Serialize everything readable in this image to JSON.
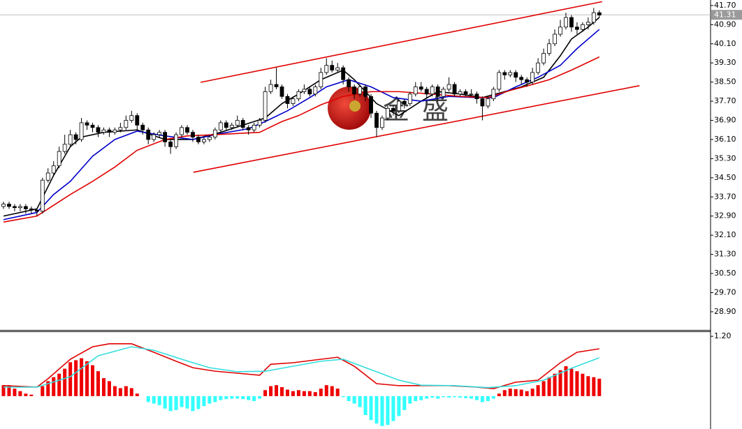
{
  "chart_data": [
    {
      "type": "candlestick",
      "ylim": [
        28.14,
        41.93
      ],
      "yticks": [
        {
          "value": 41.7,
          "label": "41.70"
        },
        {
          "value": 40.9,
          "label": "40.90"
        },
        {
          "value": 40.1,
          "label": "40.10"
        },
        {
          "value": 39.3,
          "label": "39.30"
        },
        {
          "value": 38.5,
          "label": "38.50"
        },
        {
          "value": 37.7,
          "label": "37.70"
        },
        {
          "value": 36.9,
          "label": "36.90"
        },
        {
          "value": 36.1,
          "label": "36.10"
        },
        {
          "value": 35.3,
          "label": "35.30"
        },
        {
          "value": 34.5,
          "label": "34.50"
        },
        {
          "value": 33.7,
          "label": "33.70"
        },
        {
          "value": 32.9,
          "label": "32.90"
        },
        {
          "value": 32.1,
          "label": "32.10"
        },
        {
          "value": 31.3,
          "label": "31.30"
        },
        {
          "value": 30.5,
          "label": "30.50"
        },
        {
          "value": 29.7,
          "label": "29.70"
        },
        {
          "value": 28.9,
          "label": "28.90"
        }
      ],
      "last_price": {
        "value": 41.31,
        "label": "41.31"
      },
      "watermark": "金盛",
      "up_color": "#ffffff",
      "down_color": "#000000",
      "open": [
        33.3,
        33.4,
        33.3,
        33.25,
        33.3,
        33.2,
        33.15,
        33.1,
        34.4,
        34.7,
        35.0,
        35.6,
        35.9,
        36.3,
        36.1,
        36.8,
        36.7,
        36.6,
        36.4,
        36.5,
        36.4,
        36.5,
        36.6,
        36.9,
        37.1,
        36.7,
        36.5,
        36.1,
        36.3,
        36.4,
        36.0,
        35.8,
        36.3,
        36.6,
        36.4,
        36.2,
        36.0,
        36.1,
        36.2,
        36.5,
        36.8,
        36.6,
        36.7,
        36.9,
        36.6,
        36.5,
        36.7,
        36.9,
        38.1,
        38.4,
        38.3,
        37.9,
        37.6,
        37.8,
        38.1,
        38.2,
        38.0,
        38.3,
        38.9,
        39.2,
        39.0,
        39.1,
        38.6,
        38.3,
        38.0,
        38.3,
        37.9,
        37.2,
        36.6,
        37.0,
        37.4,
        37.3,
        37.7,
        37.6,
        38.0,
        38.3,
        38.2,
        38.0,
        38.3,
        37.9,
        38.2,
        38.4,
        38.0,
        38.1,
        38.0,
        38.0,
        37.8,
        37.5,
        37.8,
        38.2,
        38.9,
        38.8,
        38.9,
        38.7,
        38.6,
        38.5,
        38.9,
        39.3,
        39.7,
        40.1,
        40.5,
        40.8,
        41.2,
        40.8,
        40.7,
        40.9,
        41.0,
        41.4
      ],
      "high": [
        33.5,
        33.5,
        33.4,
        33.4,
        33.4,
        33.3,
        33.2,
        34.5,
        34.9,
        35.2,
        35.8,
        36.3,
        36.5,
        36.4,
        37.0,
        36.9,
        36.8,
        36.7,
        36.6,
        36.6,
        36.6,
        36.8,
        37.1,
        37.3,
        37.2,
        36.8,
        36.6,
        36.4,
        36.5,
        36.5,
        36.1,
        36.4,
        36.7,
        36.7,
        36.5,
        36.3,
        36.2,
        36.3,
        36.6,
        36.9,
        36.9,
        36.8,
        37.1,
        37.0,
        36.7,
        36.8,
        37.0,
        38.3,
        38.6,
        39.1,
        38.4,
        38.0,
        37.9,
        38.2,
        38.4,
        38.3,
        38.4,
        39.1,
        39.5,
        39.4,
        39.3,
        39.2,
        38.7,
        38.4,
        38.4,
        38.4,
        38.0,
        37.3,
        37.1,
        37.5,
        37.5,
        37.8,
        37.8,
        38.1,
        38.5,
        38.5,
        38.3,
        38.4,
        38.4,
        38.3,
        38.7,
        38.5,
        38.2,
        38.2,
        38.2,
        38.1,
        37.9,
        37.9,
        38.3,
        39.0,
        39.0,
        39.0,
        39.0,
        38.8,
        38.7,
        39.1,
        39.5,
        39.9,
        40.3,
        40.7,
        41.1,
        41.4,
        41.3,
        41.0,
        41.0,
        41.2,
        41.6,
        41.5
      ],
      "low": [
        33.2,
        33.2,
        33.1,
        33.1,
        33.0,
        33.0,
        32.9,
        33.0,
        34.3,
        34.6,
        34.9,
        35.5,
        35.8,
        35.9,
        36.0,
        36.5,
        36.4,
        36.2,
        36.3,
        36.2,
        36.3,
        36.4,
        36.5,
        36.8,
        36.5,
        36.3,
        35.9,
        36.0,
        36.2,
        35.8,
        35.5,
        35.7,
        36.2,
        36.3,
        36.0,
        35.9,
        35.9,
        36.0,
        36.1,
        36.4,
        36.5,
        36.5,
        36.6,
        36.5,
        36.3,
        36.4,
        36.6,
        36.8,
        38.0,
        38.2,
        37.8,
        37.4,
        37.5,
        37.7,
        38.0,
        37.9,
        37.9,
        38.2,
        38.8,
        38.9,
        38.9,
        38.4,
        38.1,
        37.8,
        37.9,
        37.7,
        37.0,
        36.2,
        36.5,
        36.9,
        37.1,
        37.2,
        37.4,
        37.5,
        37.9,
        38.1,
        37.8,
        37.9,
        37.7,
        37.8,
        38.1,
        37.9,
        37.9,
        37.9,
        37.9,
        37.6,
        36.9,
        37.4,
        37.7,
        38.1,
        38.6,
        38.7,
        38.5,
        38.4,
        38.3,
        38.4,
        38.8,
        39.2,
        39.6,
        40.0,
        40.4,
        40.7,
        40.6,
        40.5,
        40.6,
        40.7,
        40.9,
        41.2
      ],
      "close": [
        33.4,
        33.3,
        33.25,
        33.3,
        33.2,
        33.15,
        33.1,
        34.4,
        34.7,
        35.0,
        35.6,
        35.9,
        36.3,
        36.1,
        36.8,
        36.7,
        36.6,
        36.4,
        36.5,
        36.4,
        36.5,
        36.6,
        36.9,
        37.1,
        36.7,
        36.5,
        36.1,
        36.3,
        36.4,
        36.0,
        35.8,
        36.3,
        36.6,
        36.4,
        36.2,
        36.0,
        36.1,
        36.2,
        36.5,
        36.8,
        36.6,
        36.7,
        36.9,
        36.6,
        36.5,
        36.7,
        36.9,
        38.1,
        38.4,
        38.3,
        37.9,
        37.6,
        37.8,
        38.1,
        38.2,
        38.0,
        38.3,
        38.9,
        39.2,
        39.0,
        39.1,
        38.6,
        38.3,
        38.0,
        38.3,
        37.9,
        37.2,
        36.6,
        37.0,
        37.4,
        37.3,
        37.7,
        37.6,
        38.0,
        38.3,
        38.2,
        38.0,
        38.3,
        37.9,
        38.2,
        38.4,
        38.0,
        38.1,
        38.0,
        38.0,
        37.8,
        37.5,
        37.8,
        38.2,
        38.9,
        38.8,
        38.9,
        38.7,
        38.6,
        38.5,
        38.9,
        39.3,
        39.7,
        40.1,
        40.5,
        40.8,
        41.2,
        40.8,
        40.7,
        40.9,
        41.0,
        41.4,
        41.3
      ],
      "series": [
        {
          "color": "#000000",
          "x": [
            0,
            6,
            9,
            12,
            14,
            18,
            24,
            29,
            34,
            39,
            43,
            47,
            50,
            53,
            57,
            61,
            63,
            67,
            71,
            75,
            78,
            82,
            86,
            90,
            93,
            97,
            100,
            102,
            105,
            107
          ],
          "values": [
            32.9,
            33.2,
            34.6,
            35.8,
            36.2,
            36.4,
            36.5,
            36.1,
            36.1,
            36.4,
            36.7,
            37.0,
            37.6,
            38.0,
            38.6,
            39.0,
            38.6,
            37.6,
            37.1,
            37.7,
            38.1,
            38.0,
            37.85,
            38.1,
            38.3,
            38.7,
            39.6,
            40.3,
            40.8,
            41.2
          ]
        },
        {
          "color": "#0000cc",
          "x": [
            0,
            6,
            9,
            12,
            16,
            20,
            24,
            29,
            34,
            39,
            44,
            47,
            51,
            55,
            58,
            62,
            66,
            70,
            75,
            80,
            85,
            88,
            92,
            96,
            100,
            103,
            107
          ],
          "values": [
            32.75,
            33.05,
            33.8,
            34.35,
            35.4,
            36.1,
            36.45,
            36.25,
            36.1,
            36.35,
            36.55,
            36.85,
            37.3,
            37.85,
            38.3,
            38.6,
            38.3,
            37.85,
            37.7,
            37.9,
            37.85,
            37.85,
            38.3,
            38.7,
            39.2,
            39.9,
            40.7
          ]
        },
        {
          "color": "#e00000",
          "x": [
            0,
            6,
            9,
            12,
            16,
            20,
            24,
            29,
            33,
            38,
            46,
            50,
            53,
            57,
            61,
            66,
            71,
            77,
            82,
            87,
            91,
            95,
            98,
            102,
            107
          ],
          "values": [
            32.65,
            32.9,
            33.35,
            33.8,
            34.35,
            34.95,
            35.65,
            36.1,
            36.25,
            36.3,
            36.4,
            36.85,
            37.1,
            37.55,
            37.9,
            38.1,
            38.1,
            38.0,
            37.9,
            37.85,
            38.15,
            38.4,
            38.6,
            39.0,
            39.55
          ]
        }
      ],
      "trendlines": [
        {
          "color": "#e00000",
          "x": [
            35.4,
            107.5
          ],
          "values": [
            38.49,
            41.86
          ]
        },
        {
          "color": "#e00000",
          "x": [
            34.1,
            114.2
          ],
          "values": [
            34.73,
            38.35
          ]
        }
      ]
    },
    {
      "type": "bar",
      "ylim": [
        -0.66,
        1.3
      ],
      "yticks": [
        {
          "value": 1.2,
          "label": "1.20"
        }
      ],
      "up_color": "#ee0000",
      "down_color": "#33ffff",
      "values": [
        0.22,
        0.22,
        0.15,
        0.1,
        0.05,
        0.03,
        0.0,
        0.2,
        0.3,
        0.38,
        0.45,
        0.55,
        0.68,
        0.72,
        0.76,
        0.7,
        0.62,
        0.5,
        0.36,
        0.3,
        0.2,
        0.16,
        0.2,
        0.16,
        0.05,
        0.0,
        -0.12,
        -0.15,
        -0.18,
        -0.25,
        -0.3,
        -0.28,
        -0.22,
        -0.25,
        -0.3,
        -0.26,
        -0.2,
        -0.15,
        -0.12,
        -0.08,
        -0.06,
        -0.05,
        -0.05,
        -0.06,
        -0.08,
        -0.1,
        -0.05,
        0.12,
        0.2,
        0.22,
        0.18,
        0.13,
        0.1,
        0.12,
        0.1,
        0.1,
        0.08,
        0.15,
        0.22,
        0.2,
        0.15,
        -0.02,
        -0.1,
        -0.15,
        -0.22,
        -0.38,
        -0.48,
        -0.55,
        -0.6,
        -0.58,
        -0.5,
        -0.4,
        -0.28,
        -0.15,
        -0.1,
        -0.08,
        -0.05,
        -0.03,
        -0.05,
        -0.02,
        -0.03,
        -0.02,
        -0.03,
        -0.04,
        -0.05,
        -0.08,
        -0.12,
        -0.1,
        -0.05,
        0.05,
        0.12,
        0.15,
        0.14,
        0.13,
        0.1,
        0.15,
        0.22,
        0.3,
        0.38,
        0.45,
        0.52,
        0.6,
        0.55,
        0.5,
        0.45,
        0.4,
        0.38,
        0.35
      ],
      "series": [
        {
          "color": "#e00000",
          "x": [
            0,
            6,
            8,
            12,
            16,
            19,
            23,
            27,
            31,
            34,
            38,
            42,
            46,
            48,
            52,
            57,
            60,
            63,
            67,
            71,
            75,
            80,
            85,
            88,
            92,
            96,
            100,
            103,
            107
          ],
          "values": [
            0.21,
            0.18,
            0.35,
            0.74,
            0.99,
            1.05,
            1.05,
            0.88,
            0.7,
            0.57,
            0.5,
            0.46,
            0.42,
            0.64,
            0.67,
            0.74,
            0.78,
            0.6,
            0.25,
            0.21,
            0.21,
            0.21,
            0.18,
            0.15,
            0.28,
            0.32,
            0.67,
            0.88,
            0.95
          ]
        },
        {
          "color": "#33dddd",
          "x": [
            0,
            6,
            12,
            17,
            23,
            27,
            32,
            37,
            42,
            47,
            52,
            57,
            61,
            66,
            71,
            75,
            81,
            87,
            92,
            97,
            102,
            107
          ],
          "values": [
            0.18,
            0.18,
            0.39,
            0.81,
            0.99,
            0.92,
            0.74,
            0.57,
            0.49,
            0.5,
            0.6,
            0.7,
            0.74,
            0.53,
            0.32,
            0.22,
            0.21,
            0.17,
            0.21,
            0.32,
            0.56,
            0.77
          ]
        }
      ]
    }
  ]
}
